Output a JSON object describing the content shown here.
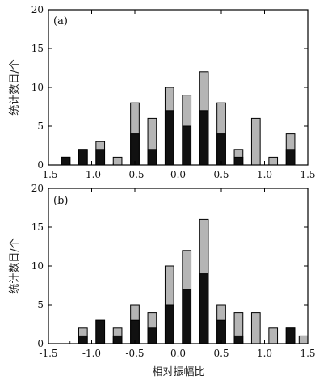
{
  "colors": {
    "total": "#b5b5b5",
    "subset": "#111111",
    "axis": "#000000",
    "background": "#ffffff"
  },
  "chart_data": [
    {
      "type": "bar",
      "panel_label": "(a)",
      "ylabel": "统计数目/个",
      "xlabel": "",
      "xlim": [
        -1.5,
        1.5
      ],
      "ylim": [
        0,
        20
      ],
      "xticks": [
        -1.5,
        -1.0,
        -0.5,
        0.0,
        0.5,
        1.0,
        1.5
      ],
      "xtick_labels": [
        "-1.5",
        "-1.0",
        "-0.5",
        "0.0",
        "0.5",
        "1.0",
        "1.5"
      ],
      "yticks": [
        0,
        5,
        10,
        15,
        20
      ],
      "bin_width": 0.1,
      "bin_centers": [
        -1.3,
        -1.1,
        -0.9,
        -0.7,
        -0.5,
        -0.3,
        -0.1,
        0.1,
        0.3,
        0.5,
        0.7,
        0.9,
        1.1,
        1.3
      ],
      "series": [
        {
          "values": [
            1,
            2,
            3,
            1,
            8,
            6,
            10,
            9,
            12,
            8,
            2,
            6,
            1,
            4
          ]
        },
        {
          "values": [
            1,
            2,
            2,
            0,
            4,
            2,
            7,
            5,
            7,
            4,
            1,
            0,
            0,
            2
          ]
        }
      ]
    },
    {
      "type": "bar",
      "panel_label": "(b)",
      "ylabel": "统计数目/个",
      "xlabel": "相对振幅比",
      "xlim": [
        -1.5,
        1.5
      ],
      "ylim": [
        0,
        20
      ],
      "xticks": [
        -1.5,
        -1.0,
        -0.5,
        0.0,
        0.5,
        1.0,
        1.5
      ],
      "xtick_labels": [
        "-1.5",
        "-1.0",
        "-0.5",
        "0.0",
        "0.5",
        "1.0",
        "1.5"
      ],
      "yticks": [
        0,
        5,
        10,
        15,
        20
      ],
      "bin_width": 0.1,
      "bin_centers": [
        -1.1,
        -0.9,
        -0.7,
        -0.5,
        -0.3,
        -0.1,
        0.1,
        0.3,
        0.5,
        0.7,
        0.9,
        1.1,
        1.3,
        1.45
      ],
      "series": [
        {
          "values": [
            2,
            3,
            2,
            5,
            4,
            10,
            12,
            16,
            5,
            4,
            4,
            2,
            2,
            1
          ]
        },
        {
          "values": [
            1,
            3,
            1,
            3,
            2,
            5,
            7,
            9,
            3,
            1,
            0,
            0,
            2,
            0
          ]
        }
      ]
    }
  ]
}
